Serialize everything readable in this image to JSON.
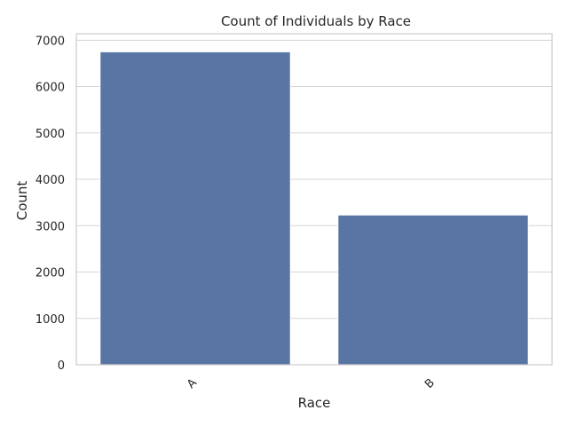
{
  "chart_data": {
    "type": "bar",
    "title": "Count of Individuals by Race",
    "xlabel": "Race",
    "ylabel": "Count",
    "categories": [
      "A",
      "B"
    ],
    "values": [
      6750,
      3230
    ],
    "ylim": [
      0,
      7140
    ],
    "yticks": [
      0,
      1000,
      2000,
      3000,
      4000,
      5000,
      6000,
      7000
    ],
    "grid": "horizontal",
    "bar_color": "#5975a4",
    "bar_edge_color": "#ffffff",
    "grid_color": "#d5d5d5",
    "spine_color": "#cccccc"
  }
}
